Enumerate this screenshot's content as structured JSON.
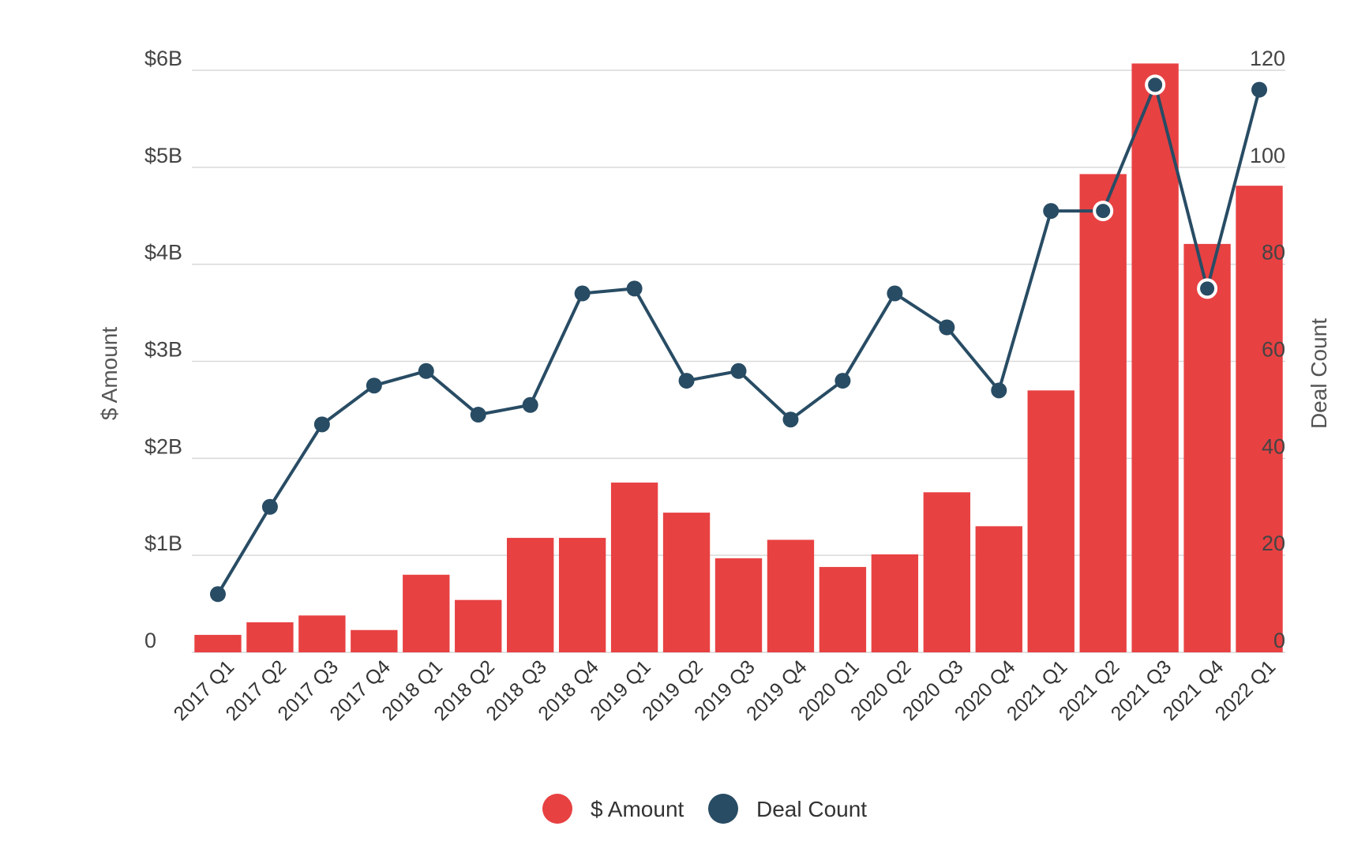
{
  "chart_data": {
    "type": "bar",
    "categories": [
      "2017 Q1",
      "2017 Q2",
      "2017 Q3",
      "2017 Q4",
      "2018 Q1",
      "2018 Q2",
      "2018 Q3",
      "2018 Q4",
      "2019 Q1",
      "2019 Q2",
      "2019 Q3",
      "2019 Q4",
      "2020 Q1",
      "2020 Q2",
      "2020 Q3",
      "2020 Q4",
      "2021 Q1",
      "2021 Q2",
      "2021 Q3",
      "2021 Q4",
      "2022 Q1"
    ],
    "series": [
      {
        "name": "$ Amount",
        "type": "bar",
        "axis": "left",
        "color": "#e84142",
        "values": [
          0.18,
          0.31,
          0.38,
          0.23,
          0.8,
          0.54,
          1.18,
          1.18,
          1.75,
          1.44,
          0.97,
          1.16,
          0.88,
          1.01,
          1.65,
          1.3,
          2.7,
          4.93,
          6.07,
          4.21,
          4.81
        ]
      },
      {
        "name": "Deal Count",
        "type": "line",
        "axis": "right",
        "color": "#284c64",
        "values": [
          12,
          30,
          47,
          55,
          58,
          49,
          51,
          74,
          75,
          56,
          58,
          48,
          56,
          74,
          67,
          54,
          91,
          91,
          117,
          75,
          116
        ],
        "highlighted_points": [
          17,
          18,
          19
        ]
      }
    ],
    "title": "",
    "ylabel": "$ Amount",
    "y2label": "Deal Count",
    "ylim": [
      0,
      6
    ],
    "y2lim": [
      0,
      120
    ],
    "y_ticks": [
      "0",
      "$1B",
      "$2B",
      "$3B",
      "$4B",
      "$5B",
      "$6B"
    ],
    "y2_ticks": [
      "0",
      "20",
      "40",
      "60",
      "80",
      "100",
      "120"
    ],
    "grid": true,
    "legend": {
      "position": "bottom",
      "items": [
        {
          "label": "$ Amount",
          "color": "#e84142"
        },
        {
          "label": "Deal Count",
          "color": "#284c64"
        }
      ]
    }
  }
}
